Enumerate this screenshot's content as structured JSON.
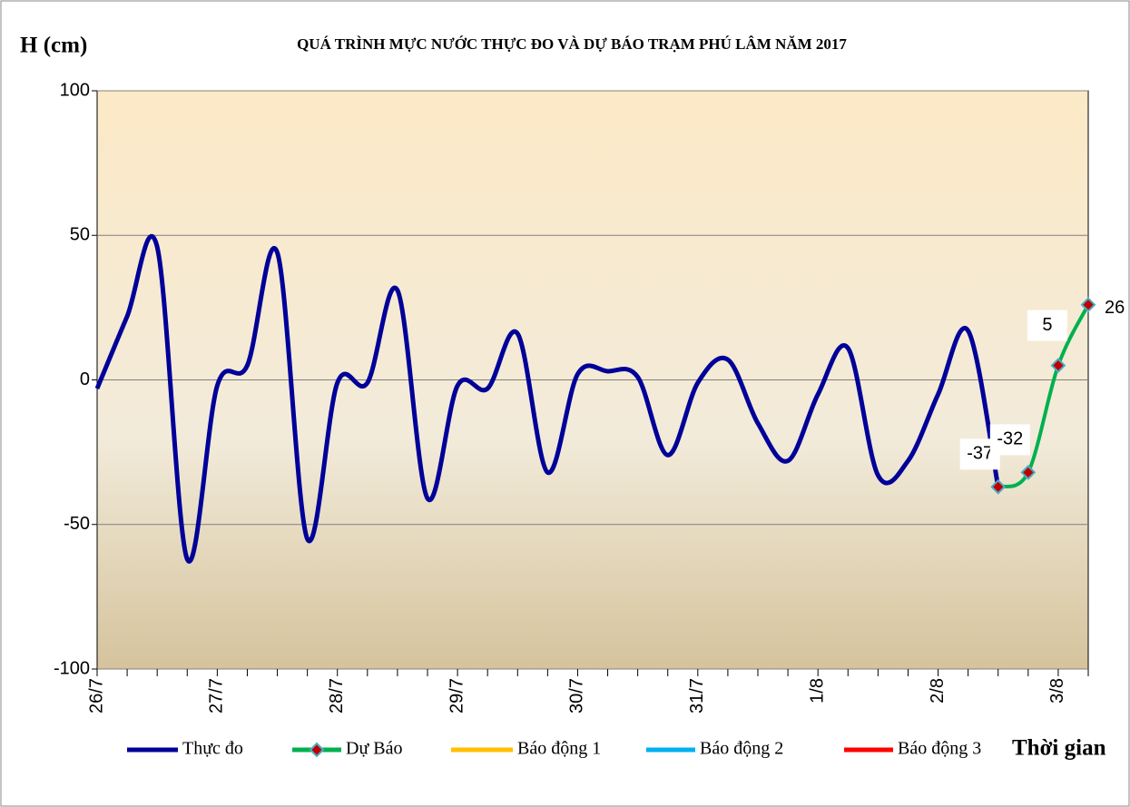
{
  "chart_data": {
    "type": "line",
    "title": "QUÁ TRÌNH MỰC NƯỚC THỰC ĐO VÀ DỰ BÁO TRẠM  PHÚ LÂM NĂM 2017",
    "y_label": "H (cm)",
    "x_label": "Thời gian",
    "categories": [
      "26/7",
      null,
      null,
      null,
      "27/7",
      null,
      null,
      null,
      "28/7",
      null,
      null,
      null,
      "29/7",
      null,
      null,
      null,
      "30/7",
      null,
      null,
      null,
      "31/7",
      null,
      null,
      null,
      "1/8",
      null,
      null,
      null,
      "2/8",
      null,
      null,
      null,
      "3/8",
      null
    ],
    "series": [
      {
        "name": "Thực đo",
        "color": "#000099",
        "values": [
          -3,
          22,
          46,
          -62,
          -2,
          5,
          44,
          -55,
          -1,
          -1,
          31,
          -41,
          -2,
          -3,
          16,
          -32,
          2,
          3,
          1,
          -26,
          -1,
          7,
          -15,
          -28,
          -5,
          11,
          -33,
          -28,
          -5,
          17,
          -37,
          null,
          null,
          null
        ]
      },
      {
        "name": "Dự Báo",
        "color": "#00b050",
        "values": [
          null,
          null,
          null,
          null,
          null,
          null,
          null,
          null,
          null,
          null,
          null,
          null,
          null,
          null,
          null,
          null,
          null,
          null,
          null,
          null,
          null,
          null,
          null,
          null,
          null,
          null,
          null,
          null,
          null,
          null,
          -37,
          -32,
          5,
          26
        ]
      }
    ],
    "alert_levels": [
      {
        "name": "Báo động 1",
        "color": "#ffc000"
      },
      {
        "name": "Báo động 2",
        "color": "#00b0f0"
      },
      {
        "name": "Báo động 3",
        "color": "#ff0000"
      }
    ],
    "ylim": [
      -100,
      100
    ],
    "yticks": [
      -100,
      -50,
      0,
      50,
      100
    ],
    "grid": true
  }
}
